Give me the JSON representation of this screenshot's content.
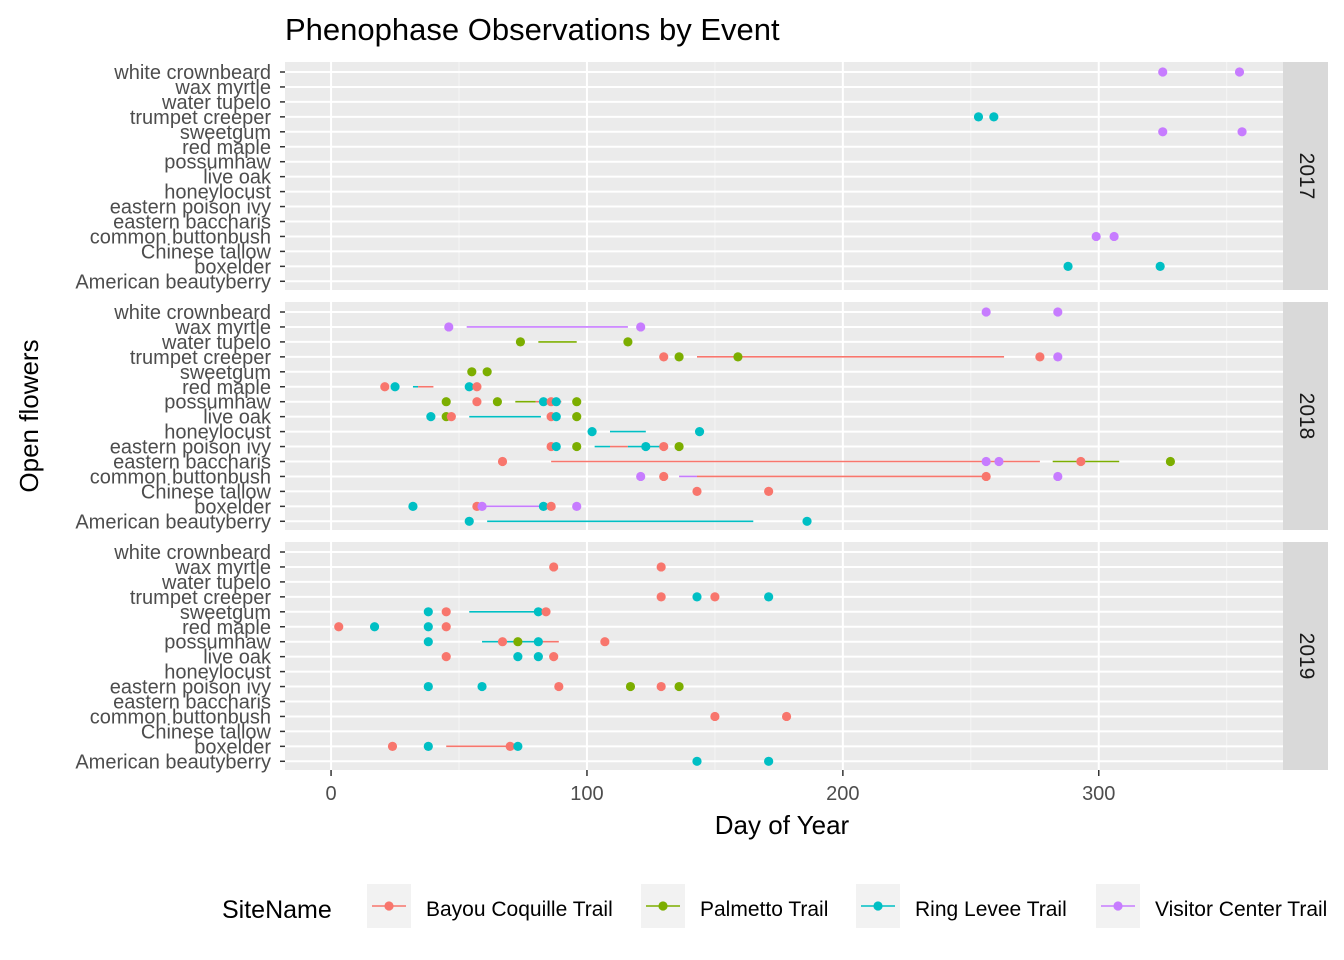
{
  "chart_data": {
    "type": "scatter",
    "title": "Phenophase Observations by Event",
    "xlabel": "Day of Year",
    "ylabel": "Open flowers",
    "xlim": [
      -18,
      372
    ],
    "xticks": [
      0,
      100,
      200,
      300
    ],
    "grid": true,
    "legend_position": "bottom",
    "legend_title": "SiteName",
    "categories": [
      "American beautyberry",
      "boxelder",
      "Chinese tallow",
      "common buttonbush",
      "eastern baccharis",
      "eastern poison ivy",
      "honeylocust",
      "live oak",
      "possumhaw",
      "red maple",
      "sweetgum",
      "trumpet creeper",
      "water tupelo",
      "wax myrtle",
      "white crownbeard"
    ],
    "series": [
      {
        "name": "Bayou Coquille Trail",
        "color": "#F8766D"
      },
      {
        "name": "Palmetto Trail",
        "color": "#7CAE00"
      },
      {
        "name": "Ring Levee Trail",
        "color": "#00BFC4"
      },
      {
        "name": "Visitor Center Trail",
        "color": "#C77CFF"
      }
    ],
    "panels": [
      {
        "label": "2017",
        "points": [
          [
            "white crownbeard",
            325,
            3
          ],
          [
            "white crownbeard",
            355,
            3
          ],
          [
            "trumpet creeper",
            253,
            2
          ],
          [
            "trumpet creeper",
            259,
            2
          ],
          [
            "sweetgum",
            325,
            3
          ],
          [
            "sweetgum",
            356,
            3
          ],
          [
            "common buttonbush",
            299,
            3
          ],
          [
            "common buttonbush",
            306,
            3
          ],
          [
            "boxelder",
            288,
            2
          ],
          [
            "boxelder",
            324,
            2
          ]
        ],
        "segments": []
      },
      {
        "label": "2018",
        "points": [
          [
            "white crownbeard",
            256,
            3
          ],
          [
            "white crownbeard",
            284,
            3
          ],
          [
            "wax myrtle",
            46,
            3
          ],
          [
            "wax myrtle",
            121,
            3
          ],
          [
            "water tupelo",
            74,
            1
          ],
          [
            "water tupelo",
            116,
            1
          ],
          [
            "trumpet creeper",
            130,
            0
          ],
          [
            "trumpet creeper",
            136,
            1
          ],
          [
            "trumpet creeper",
            159,
            1
          ],
          [
            "trumpet creeper",
            277,
            0
          ],
          [
            "trumpet creeper",
            284,
            3
          ],
          [
            "sweetgum",
            55,
            1
          ],
          [
            "sweetgum",
            61,
            1
          ],
          [
            "red maple",
            21,
            0
          ],
          [
            "red maple",
            25,
            2
          ],
          [
            "red maple",
            54,
            2
          ],
          [
            "red maple",
            57,
            0
          ],
          [
            "possumhaw",
            45,
            1
          ],
          [
            "possumhaw",
            57,
            0
          ],
          [
            "possumhaw",
            65,
            1
          ],
          [
            "possumhaw",
            83,
            2
          ],
          [
            "possumhaw",
            86,
            0
          ],
          [
            "possumhaw",
            88,
            2
          ],
          [
            "possumhaw",
            96,
            1
          ],
          [
            "live oak",
            39,
            2
          ],
          [
            "live oak",
            45,
            1
          ],
          [
            "live oak",
            47,
            0
          ],
          [
            "live oak",
            86,
            0
          ],
          [
            "live oak",
            88,
            2
          ],
          [
            "live oak",
            96,
            1
          ],
          [
            "honeylocust",
            102,
            2
          ],
          [
            "honeylocust",
            144,
            2
          ],
          [
            "eastern poison ivy",
            86,
            0
          ],
          [
            "eastern poison ivy",
            88,
            2
          ],
          [
            "eastern poison ivy",
            96,
            1
          ],
          [
            "eastern poison ivy",
            123,
            2
          ],
          [
            "eastern poison ivy",
            130,
            0
          ],
          [
            "eastern poison ivy",
            136,
            1
          ],
          [
            "eastern baccharis",
            67,
            0
          ],
          [
            "eastern baccharis",
            256,
            3
          ],
          [
            "eastern baccharis",
            261,
            3
          ],
          [
            "eastern baccharis",
            293,
            0
          ],
          [
            "eastern baccharis",
            328,
            1
          ],
          [
            "common buttonbush",
            121,
            3
          ],
          [
            "common buttonbush",
            130,
            0
          ],
          [
            "common buttonbush",
            256,
            0
          ],
          [
            "common buttonbush",
            284,
            3
          ],
          [
            "Chinese tallow",
            143,
            0
          ],
          [
            "Chinese tallow",
            171,
            0
          ],
          [
            "boxelder",
            32,
            2
          ],
          [
            "boxelder",
            57,
            0
          ],
          [
            "boxelder",
            59,
            3
          ],
          [
            "boxelder",
            83,
            2
          ],
          [
            "boxelder",
            86,
            0
          ],
          [
            "boxelder",
            96,
            3
          ],
          [
            "American beautyberry",
            54,
            2
          ],
          [
            "American beautyberry",
            186,
            2
          ]
        ],
        "segments": [
          [
            "wax myrtle",
            53,
            116,
            3
          ],
          [
            "water tupelo",
            81,
            96,
            1
          ],
          [
            "trumpet creeper",
            143,
            263,
            0
          ],
          [
            "trumpet creeper",
            159,
            159,
            1
          ],
          [
            "red maple",
            32,
            34,
            2
          ],
          [
            "red maple",
            34,
            40,
            0
          ],
          [
            "possumhaw",
            72,
            80,
            1
          ],
          [
            "possumhaw",
            80,
            90,
            0
          ],
          [
            "live oak",
            54,
            82,
            2
          ],
          [
            "honeylocust",
            109,
            123,
            2
          ],
          [
            "eastern poison ivy",
            103,
            109,
            2
          ],
          [
            "eastern poison ivy",
            109,
            116,
            0
          ],
          [
            "eastern poison ivy",
            116,
            129,
            2
          ],
          [
            "eastern baccharis",
            86,
            277,
            0
          ],
          [
            "eastern baccharis",
            282,
            308,
            1
          ],
          [
            "common buttonbush",
            136,
            143,
            3
          ],
          [
            "common buttonbush",
            143,
            256,
            0
          ],
          [
            "boxelder",
            60,
            83,
            3
          ],
          [
            "American beautyberry",
            61,
            165,
            2
          ]
        ]
      },
      {
        "label": "2019",
        "points": [
          [
            "wax myrtle",
            87,
            0
          ],
          [
            "wax myrtle",
            129,
            0
          ],
          [
            "trumpet creeper",
            129,
            0
          ],
          [
            "trumpet creeper",
            143,
            2
          ],
          [
            "trumpet creeper",
            150,
            0
          ],
          [
            "trumpet creeper",
            171,
            2
          ],
          [
            "sweetgum",
            38,
            2
          ],
          [
            "sweetgum",
            45,
            0
          ],
          [
            "sweetgum",
            81,
            2
          ],
          [
            "sweetgum",
            84,
            0
          ],
          [
            "red maple",
            3,
            0
          ],
          [
            "red maple",
            17,
            2
          ],
          [
            "red maple",
            38,
            2
          ],
          [
            "red maple",
            45,
            0
          ],
          [
            "possumhaw",
            38,
            2
          ],
          [
            "possumhaw",
            67,
            0
          ],
          [
            "possumhaw",
            73,
            1
          ],
          [
            "possumhaw",
            81,
            2
          ],
          [
            "possumhaw",
            107,
            0
          ],
          [
            "live oak",
            45,
            0
          ],
          [
            "live oak",
            73,
            2
          ],
          [
            "live oak",
            81,
            2
          ],
          [
            "live oak",
            87,
            0
          ],
          [
            "eastern poison ivy",
            38,
            2
          ],
          [
            "eastern poison ivy",
            59,
            2
          ],
          [
            "eastern poison ivy",
            89,
            0
          ],
          [
            "eastern poison ivy",
            117,
            1
          ],
          [
            "eastern poison ivy",
            129,
            0
          ],
          [
            "eastern poison ivy",
            136,
            1
          ],
          [
            "common buttonbush",
            150,
            0
          ],
          [
            "common buttonbush",
            178,
            0
          ],
          [
            "boxelder",
            24,
            0
          ],
          [
            "boxelder",
            38,
            2
          ],
          [
            "boxelder",
            70,
            0
          ],
          [
            "boxelder",
            73,
            2
          ],
          [
            "American beautyberry",
            143,
            2
          ],
          [
            "American beautyberry",
            171,
            2
          ]
        ],
        "segments": [
          [
            "sweetgum",
            54,
            80,
            2
          ],
          [
            "possumhaw",
            59,
            80,
            2
          ],
          [
            "possumhaw",
            80,
            89,
            0
          ],
          [
            "boxelder",
            45,
            70,
            0
          ]
        ]
      }
    ]
  }
}
